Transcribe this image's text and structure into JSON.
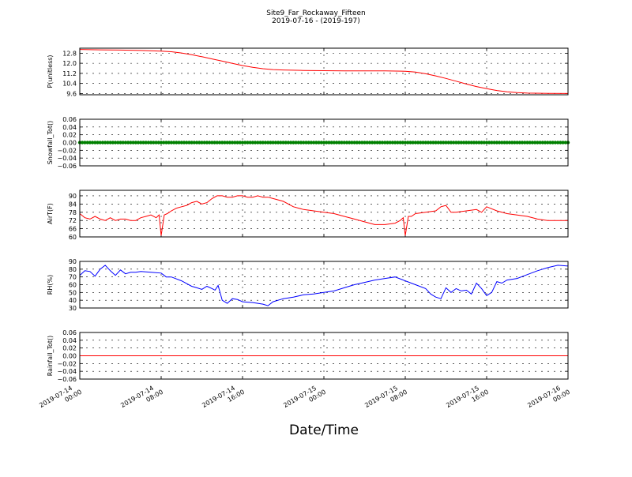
{
  "title_line1": "Site9_Far_Rockaway_Fifteen",
  "title_line2": "2019-07-16 - (2019-197)",
  "xlabel": "Date/Time",
  "x_ticks": [
    {
      "hour": 0,
      "lines": [
        "2019-07-14",
        "00:00"
      ]
    },
    {
      "hour": 8,
      "lines": [
        "2019-07-14",
        "08:00"
      ]
    },
    {
      "hour": 16,
      "lines": [
        "2019-07-14",
        "16:00"
      ]
    },
    {
      "hour": 24,
      "lines": [
        "2019-07-15",
        "00:00"
      ]
    },
    {
      "hour": 32,
      "lines": [
        "2019-07-15",
        "08:00"
      ]
    },
    {
      "hour": 40,
      "lines": [
        "2019-07-15",
        "16:00"
      ]
    },
    {
      "hour": 48,
      "lines": [
        "2019-07-16",
        "00:00"
      ]
    }
  ],
  "chart_data": [
    {
      "type": "line",
      "ylabel": "P(unitless)",
      "ylim": [
        9.5,
        13.2
      ],
      "yticks": [
        9.6,
        10.4,
        11.2,
        12.0,
        12.8
      ],
      "ytick_labels": [
        "9.6",
        "10.4",
        "11.2",
        "12.0",
        "12.8"
      ],
      "xlim_hours": [
        0,
        48
      ],
      "grid": true,
      "color": "#ff0000",
      "marker": "none",
      "x_hours": [
        0,
        2,
        4,
        6,
        8,
        9,
        10,
        11,
        12,
        13,
        14,
        15,
        16,
        17,
        18,
        19,
        20,
        22,
        24,
        26,
        28,
        30,
        32,
        33,
        34,
        35,
        36,
        37,
        38,
        39,
        40,
        41,
        42,
        43,
        44,
        46,
        48
      ],
      "values": [
        13.1,
        13.07,
        13.05,
        13.02,
        12.97,
        12.92,
        12.82,
        12.68,
        12.52,
        12.35,
        12.17,
        11.99,
        11.82,
        11.68,
        11.57,
        11.5,
        11.47,
        11.43,
        11.41,
        11.4,
        11.4,
        11.4,
        11.37,
        11.3,
        11.17,
        11.0,
        10.8,
        10.58,
        10.35,
        10.15,
        9.98,
        9.84,
        9.74,
        9.67,
        9.63,
        9.61,
        9.6
      ]
    },
    {
      "type": "scatter",
      "ylabel": "Snowfall_Tot()",
      "ylim": [
        -0.06,
        0.06
      ],
      "yticks": [
        -0.06,
        -0.04,
        -0.02,
        0.0,
        0.02,
        0.04,
        0.06
      ],
      "ytick_labels": [
        "−0.06",
        "−0.04",
        "−0.02",
        "0.00",
        "0.02",
        "0.04",
        "0.06"
      ],
      "xlim_hours": [
        0,
        48
      ],
      "grid": true,
      "color": "#008000",
      "marker": "dot",
      "constant_value": 0.0,
      "x_start_hour": 0,
      "x_end_hour": 48,
      "x_step_hours": 0.25
    },
    {
      "type": "line",
      "ylabel": "AirT(F)",
      "ylim": [
        60,
        94
      ],
      "yticks": [
        60,
        66,
        72,
        78,
        84,
        90
      ],
      "ytick_labels": [
        "60",
        "66",
        "72",
        "78",
        "84",
        "90"
      ],
      "xlim_hours": [
        0,
        48
      ],
      "grid": true,
      "color": "#ff0000",
      "marker": "none",
      "x_hours": [
        0,
        0.5,
        1,
        1.5,
        2,
        2.5,
        3,
        3.5,
        4,
        4.5,
        5,
        5.5,
        6,
        6.5,
        7,
        7.5,
        7.8,
        8.0,
        8.3,
        8.6,
        9,
        9.5,
        10,
        10.5,
        11,
        11.5,
        12,
        12.5,
        13,
        13.5,
        14,
        14.5,
        15,
        15.5,
        16,
        16.5,
        17,
        17.5,
        18,
        18.5,
        19,
        20,
        21,
        22,
        23,
        24,
        25,
        26,
        27,
        28,
        29,
        30,
        31,
        31.5,
        31.8,
        32.0,
        32.3,
        32.6,
        33,
        34,
        35,
        35.5,
        36,
        36.5,
        37,
        38,
        39,
        39.5,
        40,
        41,
        42,
        43,
        44,
        45,
        46,
        47,
        48
      ],
      "values": [
        77,
        74,
        73,
        75,
        73,
        72,
        74,
        72,
        73,
        73,
        72,
        72,
        74,
        75,
        76,
        74,
        76,
        61,
        76,
        77,
        79,
        81,
        82,
        83,
        85,
        86,
        84,
        85,
        88,
        90,
        90,
        89,
        89,
        90,
        90,
        89,
        89,
        90,
        89,
        89,
        88,
        86,
        82,
        80,
        79,
        78,
        77,
        75,
        73,
        71,
        69,
        69,
        70,
        72,
        74,
        61,
        75,
        75,
        77,
        78,
        79,
        82,
        83,
        78,
        78,
        79,
        80,
        78,
        82,
        79,
        77,
        76,
        75,
        73,
        72,
        72,
        72
      ]
    },
    {
      "type": "line",
      "ylabel": "RH(%)",
      "ylim": [
        30,
        90
      ],
      "yticks": [
        30,
        40,
        50,
        60,
        70,
        80,
        90
      ],
      "ytick_labels": [
        "30",
        "40",
        "50",
        "60",
        "70",
        "80",
        "90"
      ],
      "xlim_hours": [
        0,
        48
      ],
      "grid": true,
      "color": "#0000ff",
      "marker": "none",
      "x_hours": [
        0,
        0.5,
        1,
        1.5,
        2,
        2.5,
        3,
        3.5,
        4,
        4.5,
        5,
        5.5,
        6,
        7,
        8,
        8.5,
        9,
        10,
        11,
        11.5,
        12,
        12.5,
        13,
        13.3,
        13.6,
        14,
        14.5,
        15,
        15.5,
        16,
        17,
        18,
        18.5,
        19,
        20,
        21,
        22,
        23,
        24,
        25,
        26,
        27,
        28,
        29,
        30,
        31,
        32,
        33,
        34,
        34.5,
        35,
        35.5,
        36,
        36.5,
        37,
        37.5,
        38,
        38.5,
        39,
        39.5,
        40,
        40.5,
        41,
        41.5,
        42,
        43,
        44,
        45,
        46,
        47,
        48
      ],
      "values": [
        72,
        78,
        77,
        71,
        80,
        85,
        78,
        72,
        79,
        74,
        76,
        76,
        77,
        76,
        75,
        70,
        70,
        65,
        58,
        56,
        54,
        58,
        55,
        53,
        59,
        40,
        36,
        42,
        41,
        38,
        37,
        35,
        33,
        38,
        42,
        44,
        47,
        48,
        50,
        52,
        56,
        60,
        63,
        66,
        68,
        70,
        65,
        60,
        55,
        48,
        44,
        42,
        56,
        50,
        55,
        52,
        53,
        48,
        62,
        55,
        46,
        50,
        64,
        62,
        66,
        68,
        73,
        78,
        82,
        85,
        84
      ]
    },
    {
      "type": "line",
      "ylabel": "Rainfall_Tot()",
      "ylim": [
        -0.06,
        0.06
      ],
      "yticks": [
        -0.06,
        -0.04,
        -0.02,
        0.0,
        0.02,
        0.04,
        0.06
      ],
      "ytick_labels": [
        "−0.06",
        "−0.04",
        "−0.02",
        "0.00",
        "0.02",
        "0.04",
        "0.06"
      ],
      "xlim_hours": [
        0,
        48
      ],
      "grid": true,
      "color": "#ff0000",
      "marker": "none",
      "x_hours": [
        0,
        48
      ],
      "values": [
        0.0,
        0.0
      ]
    }
  ]
}
